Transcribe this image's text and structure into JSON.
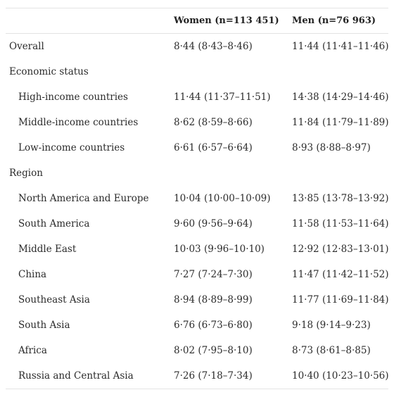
{
  "columns": [
    "",
    "Women (n=113 451)",
    "Men (n=76 963)"
  ],
  "rows": [
    {
      "label": "Overall",
      "women": "8·44 (8·43–8·46)",
      "men": "11·44 (11·41–11·46)",
      "indent": false
    },
    {
      "label": "Economic status",
      "women": "",
      "men": "",
      "indent": false
    },
    {
      "label": "High-income countries",
      "women": "11·44 (11·37–11·51)",
      "men": "14·38 (14·29–14·46)",
      "indent": true
    },
    {
      "label": "Middle-income countries",
      "women": "8·62 (8·59–8·66)",
      "men": "11·84 (11·79–11·89)",
      "indent": true
    },
    {
      "label": "Low-income countries",
      "women": "6·61 (6·57–6·64)",
      "men": "8·93 (8·88–8·97)",
      "indent": true
    },
    {
      "label": "Region",
      "women": "",
      "men": "",
      "indent": false
    },
    {
      "label": "North America and Europe",
      "women": "10·04 (10·00–10·09)",
      "men": "13·85 (13·78–13·92)",
      "indent": true
    },
    {
      "label": "South America",
      "women": "9·60 (9·56–9·64)",
      "men": "11·58 (11·53–11·64)",
      "indent": true
    },
    {
      "label": "Middle East",
      "women": "10·03 (9·96–10·10)",
      "men": "12·92 (12·83–13·01)",
      "indent": true
    },
    {
      "label": "China",
      "women": "7·27 (7·24–7·30)",
      "men": "11·47 (11·42–11·52)",
      "indent": true
    },
    {
      "label": "Southeast Asia",
      "women": "8·94 (8·89–8·99)",
      "men": "11·77 (11·69–11·84)",
      "indent": true
    },
    {
      "label": "South Asia",
      "women": "6·76 (6·73–6·80)",
      "men": "9·18 (9·14–9·23)",
      "indent": true
    },
    {
      "label": "Africa",
      "women": "8·02 (7·95–8·10)",
      "men": "8·73 (8·61–8·85)",
      "indent": true
    },
    {
      "label": "Russia and Central Asia",
      "women": "7·26 (7·18–7·34)",
      "men": "10·40 (10·23–10·56)",
      "indent": true
    }
  ]
}
